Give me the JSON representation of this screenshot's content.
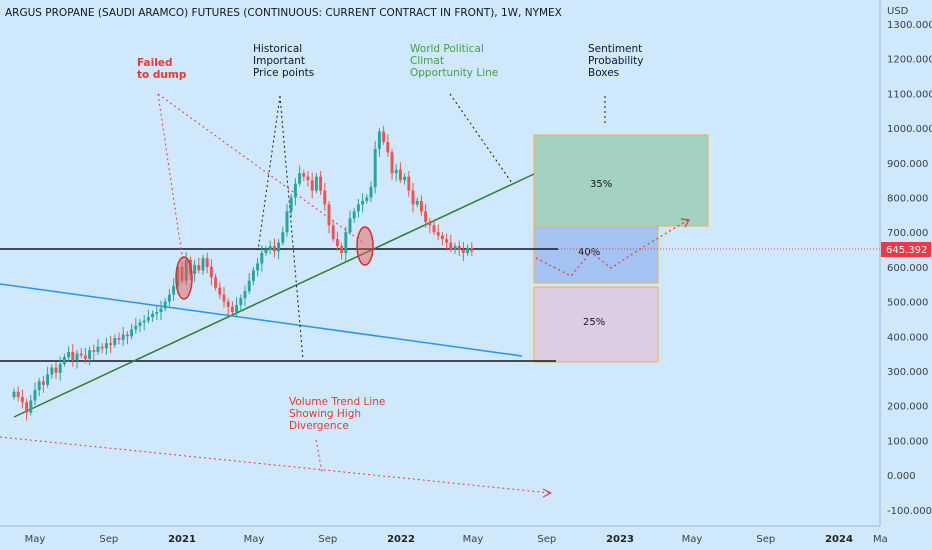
{
  "colors": {
    "background": "#cfe8fb",
    "up": "#26a69a",
    "down": "#ef5350",
    "axis_text": "#3a3f4b",
    "price_tag": "#f23645",
    "trend_green": "#2e7d32",
    "trend_blue": "#2196f3",
    "annotation_red": "#e53935",
    "annotation_black": "#131722",
    "annotation_green": "#43a047",
    "box_green": "#a3d2c2",
    "box_blue": "#a4c3f2",
    "box_purple": "#ddcde2",
    "box_border": "#f5b041"
  },
  "header": {
    "title": "ARGUS PROPANE (SAUDI ARAMCO) FUTURES (CONTINUOUS: CURRENT CONTRACT IN FRONT), 1W, NYMEX"
  },
  "axis": {
    "currency": "USD",
    "price_tag": "645.392"
  },
  "annotations": {
    "failed": [
      "Failed",
      "to dump"
    ],
    "historical": [
      "Historical",
      "Important",
      "Price points"
    ],
    "world": [
      "World Political",
      "Climat",
      "Opportunity Line"
    ],
    "sentiment": [
      "Sentiment",
      "Probability",
      "Boxes"
    ],
    "volume": [
      "Volume Trend Line",
      "Showing High",
      "Divergence"
    ]
  },
  "boxes": {
    "top": "35%",
    "middle": "40%",
    "bottom": "25%"
  },
  "chart_data": {
    "type": "candlestick",
    "title": "ARGUS PROPANE (SAUDI ARAMCO) FUTURES (CONTINUOUS: CURRENT CONTRACT IN FRONT), 1W, NYMEX",
    "ylabel": "USD",
    "ylim": [
      -150,
      1350
    ],
    "xlim": [
      "2020-03-20",
      "2024-03-15"
    ],
    "y_ticks": [
      "1300.000",
      "1200.000",
      "1100.000",
      "1000.000",
      "900.000",
      "800.000",
      "700.000",
      "600.000",
      "500.000",
      "400.000",
      "300.000",
      "200.000",
      "100.000",
      "0.000",
      "-100.000"
    ],
    "x_ticks": [
      {
        "label": "May",
        "date": "2020-05-01"
      },
      {
        "label": "Sep",
        "date": "2020-09-01"
      },
      {
        "label": "2021",
        "date": "2021-01-01",
        "year": true
      },
      {
        "label": "May",
        "date": "2021-05-01"
      },
      {
        "label": "Sep",
        "date": "2021-09-01"
      },
      {
        "label": "2022",
        "date": "2022-01-01",
        "year": true
      },
      {
        "label": "May",
        "date": "2022-05-01"
      },
      {
        "label": "Sep",
        "date": "2022-09-01"
      },
      {
        "label": "2023",
        "date": "2023-01-01",
        "year": true
      },
      {
        "label": "May",
        "date": "2023-05-01"
      },
      {
        "label": "Sep",
        "date": "2023-09-01"
      },
      {
        "label": "2024",
        "date": "2024-01-01",
        "year": true
      },
      {
        "label": "Ma",
        "date": "2024-03-10"
      }
    ],
    "last_price": 645.392,
    "series": [
      {
        "name": "ARGUS PROPANE",
        "weekly_close": [
          240,
          225,
          210,
          180,
          215,
          245,
          270,
          260,
          290,
          310,
          295,
          320,
          340,
          355,
          330,
          350,
          345,
          335,
          360,
          355,
          370,
          365,
          380,
          375,
          395,
          390,
          405,
          400,
          420,
          430,
          440,
          445,
          455,
          465,
          470,
          480,
          500,
          520,
          545,
          600,
          560,
          620,
          580,
          605,
          590,
          625,
          600,
          570,
          540,
          520,
          500,
          485,
          470,
          490,
          510,
          530,
          560,
          590,
          610,
          640,
          650,
          660,
          645,
          670,
          700,
          760,
          800,
          840,
          870,
          860,
          850,
          820,
          860,
          820,
          780,
          720,
          680,
          660,
          640,
          700,
          740,
          760,
          780,
          790,
          800,
          830,
          940,
          990,
          960,
          930,
          870,
          880,
          850,
          860,
          820,
          780,
          790,
          760,
          730,
          720,
          700,
          690,
          680,
          670,
          650,
          660,
          650,
          640,
          655,
          645
        ]
      }
    ],
    "lines": [
      {
        "name": "horizontal-resistance",
        "price": 650
      },
      {
        "name": "horizontal-support",
        "price": 320
      },
      {
        "name": "opportunity-trendline",
        "from": [
          "2020-04-03",
          160
        ],
        "to": [
          "2022-09-30",
          860
        ]
      },
      {
        "name": "blue-trendline",
        "from": [
          "2020-03-20",
          540
        ],
        "to": [
          "2022-09-16",
          340
        ]
      }
    ],
    "sentiment_boxes": [
      {
        "label": "35%",
        "from": "2022-09-30",
        "to": "2023-02-24",
        "low": 720,
        "high": 980
      },
      {
        "label": "40%",
        "from": "2022-09-30",
        "to": "2022-12-02",
        "low": 550,
        "high": 720
      },
      {
        "label": "25%",
        "from": "2022-09-30",
        "to": "2022-12-02",
        "low": 330,
        "high": 540
      }
    ]
  }
}
